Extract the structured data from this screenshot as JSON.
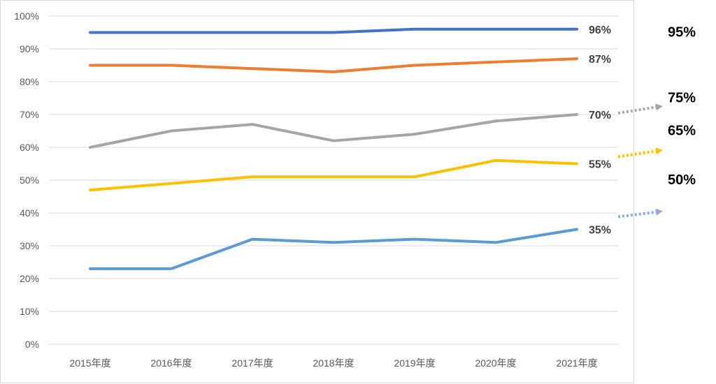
{
  "chart_data": {
    "type": "line",
    "categories": [
      "2015年度",
      "2016年度",
      "2017年度",
      "2018年度",
      "2019年度",
      "2020年度",
      "2021年度"
    ],
    "y_ticks": [
      "0%",
      "10%",
      "20%",
      "30%",
      "40%",
      "50%",
      "60%",
      "70%",
      "80%",
      "90%",
      "100%"
    ],
    "ylim": [
      0,
      100
    ],
    "grid": true,
    "legend": "none",
    "series": [
      {
        "color": "#4472C4",
        "values": [
          95,
          95,
          95,
          95,
          96,
          96,
          96
        ],
        "end_label": "96%",
        "target": 95,
        "target_label": "95%"
      },
      {
        "color": "#ED7D31",
        "values": [
          85,
          85,
          84,
          83,
          85,
          86,
          87
        ],
        "end_label": "87%"
      },
      {
        "color": "#A5A5A5",
        "values": [
          60,
          65,
          67,
          62,
          64,
          68,
          70
        ],
        "end_label": "70%",
        "target": 75,
        "target_label": "75%"
      },
      {
        "color": "#FFC000",
        "values": [
          47,
          49,
          51,
          51,
          51,
          56,
          55
        ],
        "end_label": "55%",
        "target": 65,
        "target_label": "65%"
      },
      {
        "color": "#5B9BD5",
        "values": [
          23,
          23,
          32,
          31,
          32,
          31,
          35
        ],
        "end_label": "35%",
        "target": 50,
        "target_label": "50%"
      }
    ]
  }
}
